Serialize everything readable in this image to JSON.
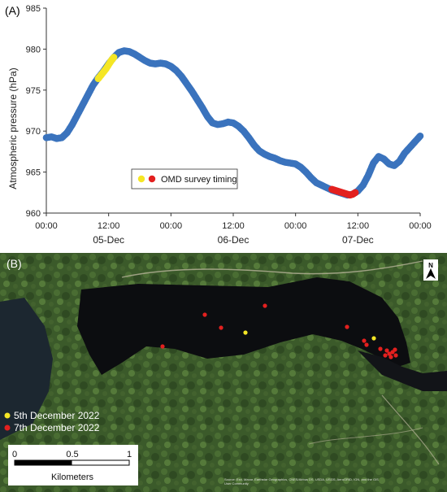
{
  "panel_a_label": "(A)",
  "panel_b_label": "(B)",
  "chart_data": {
    "type": "scatter",
    "title": "",
    "xlabel": "",
    "ylabel": "Atmospheric pressure (hPa)",
    "xlim": [
      0,
      72
    ],
    "ylim": [
      960,
      985
    ],
    "yticks": [
      960,
      965,
      970,
      975,
      980,
      985
    ],
    "xticks": [
      {
        "value": 0,
        "time": "00:00",
        "date": ""
      },
      {
        "value": 12,
        "time": "12:00",
        "date": "05-Dec"
      },
      {
        "value": 24,
        "time": "00:00",
        "date": ""
      },
      {
        "value": 36,
        "time": "12:00",
        "date": "06-Dec"
      },
      {
        "value": 48,
        "time": "00:00",
        "date": ""
      },
      {
        "value": 60,
        "time": "12:00",
        "date": "07-Dec"
      },
      {
        "value": 72,
        "time": "00:00",
        "date": ""
      }
    ],
    "legend": {
      "label": "OMD survey timing",
      "position": "bottom-center"
    },
    "series": [
      {
        "color": "#3a73bd",
        "x": [
          0,
          1,
          2,
          3,
          4,
          5,
          6,
          7,
          8,
          9,
          10,
          11,
          12,
          13,
          14,
          15,
          16,
          17,
          18,
          19,
          20,
          21,
          22,
          23,
          24,
          25,
          26,
          27,
          28,
          29,
          30,
          31,
          32,
          33,
          34,
          35,
          36,
          37,
          38,
          39,
          40,
          41,
          42,
          43,
          44,
          45,
          46,
          47,
          48,
          49,
          50,
          51,
          52,
          53,
          54,
          55,
          56,
          57,
          58,
          59,
          60,
          61,
          62,
          63,
          64,
          65,
          66,
          67,
          68,
          69,
          70,
          71,
          72
        ],
        "y": [
          969.2,
          969.3,
          969.1,
          969.2,
          969.8,
          970.8,
          972.0,
          973.2,
          974.4,
          975.6,
          976.5,
          977.3,
          978.2,
          979.0,
          979.6,
          979.8,
          979.7,
          979.4,
          979.0,
          978.6,
          978.3,
          978.2,
          978.3,
          978.2,
          977.9,
          977.4,
          976.7,
          975.8,
          974.9,
          973.9,
          972.9,
          971.8,
          971.0,
          970.8,
          970.9,
          971.1,
          971.0,
          970.6,
          970.0,
          969.2,
          968.3,
          967.6,
          967.2,
          966.9,
          966.7,
          966.4,
          966.2,
          966.1,
          966.0,
          965.6,
          965.0,
          964.3,
          963.7,
          963.4,
          963.1,
          962.8,
          962.6,
          962.4,
          962.2,
          962.3,
          962.7,
          963.4,
          964.6,
          966.1,
          966.9,
          966.6,
          966.0,
          965.8,
          966.3,
          967.3,
          968.0,
          968.7,
          969.4
        ]
      },
      {
        "color": "#f5e625",
        "x": [
          10.0,
          10.5,
          11.0,
          11.5,
          12.0,
          12.5,
          13.0
        ],
        "y": [
          976.4,
          976.8,
          977.2,
          977.6,
          978.1,
          978.6,
          979.0
        ]
      },
      {
        "color": "#e3201f",
        "x": [
          55.0,
          55.5,
          56.0,
          56.5,
          57.0,
          57.5,
          58.0,
          58.5,
          59.0,
          59.5
        ],
        "y": [
          962.9,
          962.8,
          962.7,
          962.6,
          962.5,
          962.4,
          962.3,
          962.2,
          962.3,
          962.5
        ]
      }
    ]
  },
  "map": {
    "north_symbol": "N",
    "legend": [
      {
        "label": "5th December 2022",
        "color": "#f5e625"
      },
      {
        "label": "7th December 2022",
        "color": "#e3201f"
      }
    ],
    "scalebar": {
      "ticks": [
        "0",
        "0.5",
        "1"
      ],
      "unit": "Kilometers"
    },
    "credit_line1": "Source: Esri, Maxar, Earthstar Geographics, CNES/Airbus DS, USDA, USGS, AeroGRID, IGN, and the GIS",
    "credit_line2": "User Community"
  }
}
